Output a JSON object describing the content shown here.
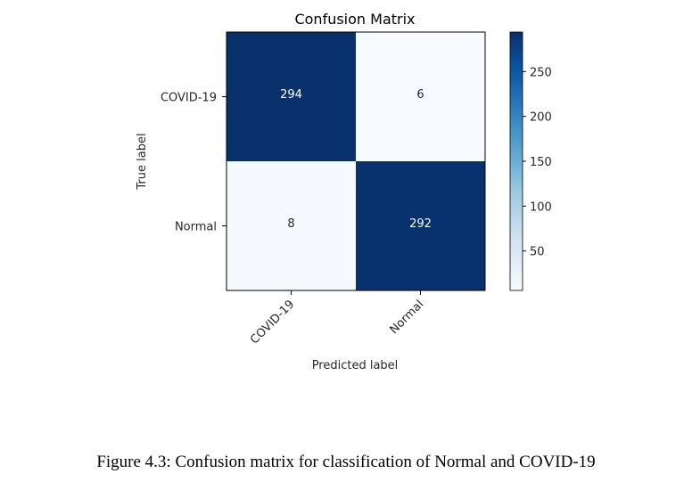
{
  "chart_data": {
    "type": "heatmap",
    "title": "Confusion Matrix",
    "xlabel": "Predicted label",
    "ylabel": "True label",
    "x_categories": [
      "COVID-19",
      "Normal"
    ],
    "y_categories": [
      "COVID-19",
      "Normal"
    ],
    "values": [
      [
        294,
        6
      ],
      [
        8,
        292
      ]
    ],
    "cell_labels": [
      [
        "294",
        "6"
      ],
      [
        "8",
        "292"
      ]
    ],
    "colormap": "Blues",
    "colorbar": {
      "range": [
        6,
        294
      ],
      "ticks": [
        50,
        100,
        150,
        200,
        250
      ],
      "tick_labels": [
        "50",
        "100",
        "150",
        "200",
        "250"
      ]
    },
    "colors": {
      "low": "#f7fbff",
      "high": "#08306b",
      "text_dark": "#262626",
      "text_light": "#ffffff"
    }
  },
  "caption": "Figure 4.3: Confusion matrix for classification of Normal and COVID-19"
}
